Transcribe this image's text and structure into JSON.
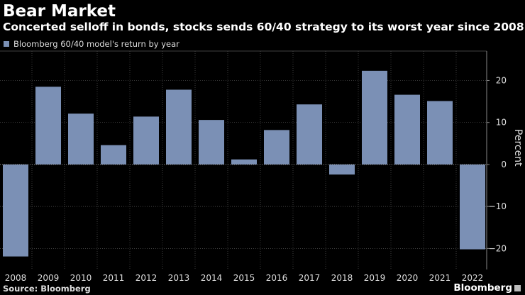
{
  "header": {
    "title": "Bear Market",
    "subtitle": "Concerted selloff in bonds, stocks sends 60/40 strategy to its worst year since 2008"
  },
  "footer": {
    "source": "Source: Bloomberg",
    "brand": "Bloomberg"
  },
  "colors": {
    "bar": "#7b90b5",
    "background": "#000000",
    "grid": "#555555",
    "text": "#dddddd"
  },
  "chart_data": {
    "type": "bar",
    "categories": [
      "2008",
      "2009",
      "2010",
      "2011",
      "2012",
      "2013",
      "2014",
      "2015",
      "2016",
      "2017",
      "2018",
      "2019",
      "2020",
      "2021",
      "2022"
    ],
    "series": [
      {
        "name": "Bloomberg 60/40 model's return by year",
        "values": [
          -21.9,
          18.5,
          12.1,
          4.6,
          11.4,
          17.8,
          10.6,
          1.2,
          8.2,
          14.3,
          -2.4,
          22.3,
          16.6,
          15.1,
          -20.2
        ]
      }
    ],
    "ylabel": "Percent",
    "ylim": [
      -25,
      27
    ],
    "yticks": [
      -20,
      -10,
      0,
      10,
      20
    ],
    "grid": true,
    "y_axis_side": "right",
    "legend_position": "top-left"
  }
}
